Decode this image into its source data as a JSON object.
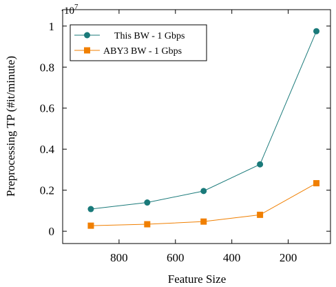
{
  "chart_data": {
    "type": "line",
    "title": "",
    "xlabel": "Feature Size",
    "ylabel": "Preprocessing TP (#it/minute)",
    "y_multiplier_label": "·10",
    "y_multiplier_exp": "7",
    "x_reversed": true,
    "xlim": [
      1000,
      50
    ],
    "ylim": [
      -0.06,
      1.08
    ],
    "x_ticks": [
      800,
      600,
      400,
      200
    ],
    "y_ticks": [
      0,
      0.2,
      0.4,
      0.6,
      0.8,
      1
    ],
    "y_tick_labels": [
      "0",
      "0.2",
      "0.4",
      "0.6",
      "0.8",
      "1"
    ],
    "legend_position": "top-left",
    "x": [
      900,
      700,
      500,
      300,
      100
    ],
    "series": [
      {
        "name": "This BW - 1 Gbps",
        "color": "#1a7a7a",
        "marker": "circle",
        "values": [
          0.108,
          0.14,
          0.196,
          0.326,
          0.975
        ]
      },
      {
        "name": "ABY3 BW - 1 Gbps",
        "color": "#f07f00",
        "marker": "square",
        "values": [
          0.027,
          0.034,
          0.047,
          0.08,
          0.234
        ]
      }
    ]
  }
}
